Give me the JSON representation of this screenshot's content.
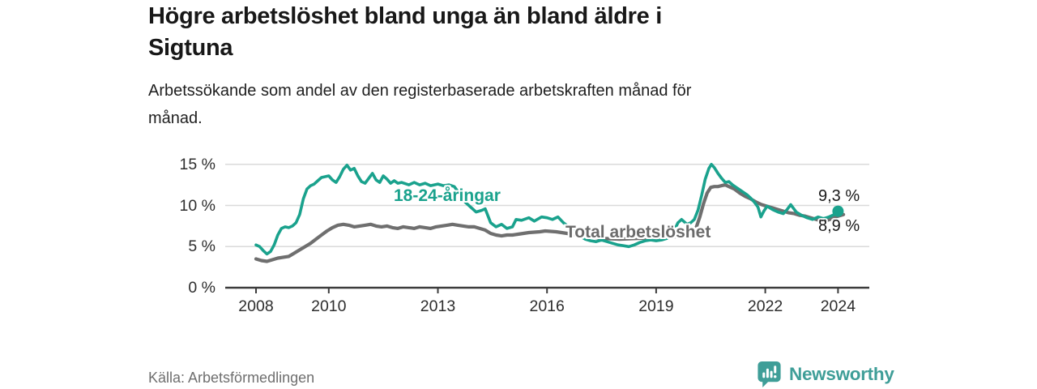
{
  "header": {
    "title_line1": "Högre arbetslöshet bland unga än bland äldre i",
    "title_line2": "Sigtuna",
    "subtitle_line1": "Arbetssökande som andel av den registerbaserade arbetskraften månad för",
    "subtitle_line2": "månad."
  },
  "chart_data": {
    "type": "line",
    "title": "Högre arbetslöshet bland unga än bland äldre i Sigtuna",
    "subtitle": "Arbetssökande som andel av den registerbaserade arbetskraften månad för månad.",
    "unit": "%",
    "ylim": [
      0,
      15
    ],
    "xlim": [
      2007.2,
      2024.9
    ],
    "grid": "horizontal",
    "grid_color": "#dadada",
    "axis_color": "#3c3c3c",
    "y_axis": {
      "ticks": [
        {
          "value": 0,
          "label": "0 %"
        },
        {
          "value": 5,
          "label": "5 %"
        },
        {
          "value": 10,
          "label": "10 %"
        },
        {
          "value": 15,
          "label": "15 %"
        }
      ]
    },
    "x_axis": {
      "ticks": [
        {
          "value": 2008,
          "label": "2008"
        },
        {
          "value": 2010,
          "label": "2010"
        },
        {
          "value": 2013,
          "label": "2013"
        },
        {
          "value": 2016,
          "label": "2016"
        },
        {
          "value": 2019,
          "label": "2019"
        },
        {
          "value": 2022,
          "label": "2022"
        },
        {
          "value": 2024,
          "label": "2024"
        }
      ]
    },
    "series": [
      {
        "id": "young",
        "name": "18-24-åringar",
        "color": "#1aa28d",
        "stroke_width": 3.6,
        "end_label": "9,3 %",
        "end_value": 9.3,
        "end_marker": true,
        "points": [
          [
            2008.0,
            5.2
          ],
          [
            2008.1,
            5.0
          ],
          [
            2008.2,
            4.5
          ],
          [
            2008.3,
            4.1
          ],
          [
            2008.4,
            4.4
          ],
          [
            2008.5,
            5.2
          ],
          [
            2008.6,
            6.4
          ],
          [
            2008.7,
            7.2
          ],
          [
            2008.8,
            7.4
          ],
          [
            2008.9,
            7.3
          ],
          [
            2009.0,
            7.5
          ],
          [
            2009.1,
            7.9
          ],
          [
            2009.2,
            8.9
          ],
          [
            2009.3,
            10.8
          ],
          [
            2009.4,
            12.0
          ],
          [
            2009.5,
            12.4
          ],
          [
            2009.6,
            12.6
          ],
          [
            2009.7,
            13.0
          ],
          [
            2009.8,
            13.4
          ],
          [
            2009.9,
            13.5
          ],
          [
            2010.0,
            13.6
          ],
          [
            2010.1,
            13.1
          ],
          [
            2010.2,
            12.8
          ],
          [
            2010.3,
            13.5
          ],
          [
            2010.4,
            14.4
          ],
          [
            2010.5,
            14.9
          ],
          [
            2010.6,
            14.3
          ],
          [
            2010.7,
            14.5
          ],
          [
            2010.8,
            13.6
          ],
          [
            2010.9,
            12.9
          ],
          [
            2011.0,
            12.7
          ],
          [
            2011.1,
            13.3
          ],
          [
            2011.2,
            13.9
          ],
          [
            2011.3,
            13.1
          ],
          [
            2011.4,
            12.8
          ],
          [
            2011.5,
            13.6
          ],
          [
            2011.6,
            13.2
          ],
          [
            2011.7,
            12.7
          ],
          [
            2011.8,
            13.0
          ],
          [
            2011.9,
            12.7
          ],
          [
            2012.0,
            12.8
          ],
          [
            2012.2,
            12.5
          ],
          [
            2012.35,
            12.8
          ],
          [
            2012.5,
            12.5
          ],
          [
            2012.65,
            12.7
          ],
          [
            2012.8,
            12.4
          ],
          [
            2013.0,
            12.6
          ],
          [
            2013.15,
            12.4
          ],
          [
            2013.3,
            12.5
          ],
          [
            2013.45,
            12.3
          ],
          [
            2013.6,
            11.4
          ],
          [
            2013.75,
            10.4
          ],
          [
            2013.9,
            9.8
          ],
          [
            2014.05,
            9.2
          ],
          [
            2014.2,
            9.4
          ],
          [
            2014.3,
            9.6
          ],
          [
            2014.45,
            7.9
          ],
          [
            2014.6,
            7.4
          ],
          [
            2014.75,
            7.7
          ],
          [
            2014.9,
            7.2
          ],
          [
            2015.05,
            7.4
          ],
          [
            2015.15,
            8.3
          ],
          [
            2015.3,
            8.2
          ],
          [
            2015.5,
            8.5
          ],
          [
            2015.65,
            8.1
          ],
          [
            2015.85,
            8.6
          ],
          [
            2016.0,
            8.5
          ],
          [
            2016.15,
            8.3
          ],
          [
            2016.3,
            8.6
          ],
          [
            2016.45,
            7.9
          ],
          [
            2016.6,
            7.4
          ],
          [
            2016.75,
            6.8
          ],
          [
            2016.9,
            6.3
          ],
          [
            2017.05,
            5.9
          ],
          [
            2017.2,
            5.7
          ],
          [
            2017.35,
            5.6
          ],
          [
            2017.5,
            5.8
          ],
          [
            2017.65,
            5.6
          ],
          [
            2017.8,
            5.4
          ],
          [
            2017.95,
            5.2
          ],
          [
            2018.1,
            5.1
          ],
          [
            2018.25,
            5.0
          ],
          [
            2018.4,
            5.2
          ],
          [
            2018.55,
            5.5
          ],
          [
            2018.7,
            5.7
          ],
          [
            2018.85,
            5.8
          ],
          [
            2019.0,
            5.7
          ],
          [
            2019.15,
            5.8
          ],
          [
            2019.3,
            6.0
          ],
          [
            2019.45,
            6.5
          ],
          [
            2019.6,
            7.9
          ],
          [
            2019.7,
            8.3
          ],
          [
            2019.85,
            7.7
          ],
          [
            2019.95,
            7.9
          ],
          [
            2020.05,
            8.3
          ],
          [
            2020.15,
            9.4
          ],
          [
            2020.25,
            11.2
          ],
          [
            2020.35,
            13.2
          ],
          [
            2020.45,
            14.5
          ],
          [
            2020.52,
            15.0
          ],
          [
            2020.6,
            14.6
          ],
          [
            2020.7,
            13.9
          ],
          [
            2020.8,
            13.3
          ],
          [
            2020.9,
            12.8
          ],
          [
            2021.0,
            12.9
          ],
          [
            2021.1,
            12.5
          ],
          [
            2021.2,
            12.2
          ],
          [
            2021.3,
            11.9
          ],
          [
            2021.4,
            11.6
          ],
          [
            2021.5,
            11.3
          ],
          [
            2021.6,
            10.9
          ],
          [
            2021.7,
            10.4
          ],
          [
            2021.8,
            9.8
          ],
          [
            2021.88,
            8.6
          ],
          [
            2021.96,
            9.3
          ],
          [
            2022.05,
            9.9
          ],
          [
            2022.2,
            9.5
          ],
          [
            2022.35,
            9.2
          ],
          [
            2022.5,
            9.0
          ],
          [
            2022.6,
            9.5
          ],
          [
            2022.7,
            10.1
          ],
          [
            2022.85,
            9.2
          ],
          [
            2023.0,
            8.8
          ],
          [
            2023.15,
            8.5
          ],
          [
            2023.3,
            8.3
          ],
          [
            2023.45,
            8.6
          ],
          [
            2023.6,
            8.4
          ],
          [
            2023.75,
            8.6
          ],
          [
            2023.9,
            8.9
          ],
          [
            2024.0,
            9.3
          ]
        ]
      },
      {
        "id": "total",
        "name": "Total arbetslöshet",
        "color": "#6f6f6f",
        "stroke_width": 4.2,
        "end_label": "8,9 %",
        "end_value": 8.9,
        "end_marker": false,
        "points": [
          [
            2008.0,
            3.5
          ],
          [
            2008.15,
            3.3
          ],
          [
            2008.3,
            3.2
          ],
          [
            2008.45,
            3.4
          ],
          [
            2008.6,
            3.6
          ],
          [
            2008.75,
            3.7
          ],
          [
            2008.9,
            3.8
          ],
          [
            2009.05,
            4.2
          ],
          [
            2009.2,
            4.6
          ],
          [
            2009.35,
            5.0
          ],
          [
            2009.5,
            5.4
          ],
          [
            2009.65,
            5.9
          ],
          [
            2009.8,
            6.4
          ],
          [
            2009.95,
            6.9
          ],
          [
            2010.1,
            7.3
          ],
          [
            2010.25,
            7.6
          ],
          [
            2010.4,
            7.7
          ],
          [
            2010.55,
            7.6
          ],
          [
            2010.7,
            7.4
          ],
          [
            2010.85,
            7.5
          ],
          [
            2011.0,
            7.6
          ],
          [
            2011.15,
            7.7
          ],
          [
            2011.3,
            7.5
          ],
          [
            2011.45,
            7.4
          ],
          [
            2011.6,
            7.5
          ],
          [
            2011.75,
            7.3
          ],
          [
            2011.9,
            7.2
          ],
          [
            2012.05,
            7.4
          ],
          [
            2012.2,
            7.3
          ],
          [
            2012.35,
            7.2
          ],
          [
            2012.5,
            7.4
          ],
          [
            2012.65,
            7.3
          ],
          [
            2012.8,
            7.2
          ],
          [
            2012.95,
            7.4
          ],
          [
            2013.1,
            7.5
          ],
          [
            2013.25,
            7.6
          ],
          [
            2013.4,
            7.7
          ],
          [
            2013.55,
            7.6
          ],
          [
            2013.7,
            7.5
          ],
          [
            2013.85,
            7.4
          ],
          [
            2014.0,
            7.4
          ],
          [
            2014.15,
            7.2
          ],
          [
            2014.3,
            7.0
          ],
          [
            2014.45,
            6.6
          ],
          [
            2014.6,
            6.4
          ],
          [
            2014.75,
            6.3
          ],
          [
            2014.9,
            6.4
          ],
          [
            2015.05,
            6.4
          ],
          [
            2015.2,
            6.5
          ],
          [
            2015.35,
            6.6
          ],
          [
            2015.5,
            6.7
          ],
          [
            2015.65,
            6.75
          ],
          [
            2015.8,
            6.8
          ],
          [
            2015.95,
            6.9
          ],
          [
            2016.1,
            6.85
          ],
          [
            2016.25,
            6.8
          ],
          [
            2016.4,
            6.7
          ],
          [
            2016.55,
            6.6
          ],
          [
            2016.7,
            6.5
          ],
          [
            2016.85,
            6.4
          ],
          [
            2017.0,
            6.3
          ],
          [
            2017.25,
            6.15
          ],
          [
            2017.5,
            6.0
          ],
          [
            2017.75,
            5.95
          ],
          [
            2018.0,
            5.9
          ],
          [
            2018.25,
            5.95
          ],
          [
            2018.5,
            6.0
          ],
          [
            2018.75,
            6.05
          ],
          [
            2019.0,
            6.1
          ],
          [
            2019.25,
            6.15
          ],
          [
            2019.5,
            6.2
          ],
          [
            2019.75,
            6.3
          ],
          [
            2019.9,
            6.4
          ],
          [
            2020.0,
            6.6
          ],
          [
            2020.1,
            7.3
          ],
          [
            2020.2,
            8.6
          ],
          [
            2020.3,
            10.2
          ],
          [
            2020.4,
            11.5
          ],
          [
            2020.5,
            12.2
          ],
          [
            2020.6,
            12.3
          ],
          [
            2020.7,
            12.3
          ],
          [
            2020.8,
            12.4
          ],
          [
            2020.9,
            12.5
          ],
          [
            2021.0,
            12.3
          ],
          [
            2021.15,
            12.0
          ],
          [
            2021.3,
            11.5
          ],
          [
            2021.45,
            11.1
          ],
          [
            2021.6,
            10.8
          ],
          [
            2021.75,
            10.4
          ],
          [
            2021.9,
            10.1
          ],
          [
            2022.05,
            9.9
          ],
          [
            2022.2,
            9.7
          ],
          [
            2022.35,
            9.5
          ],
          [
            2022.5,
            9.3
          ],
          [
            2022.65,
            9.1
          ],
          [
            2022.8,
            9.0
          ],
          [
            2022.95,
            8.8
          ],
          [
            2023.1,
            8.7
          ],
          [
            2023.25,
            8.5
          ],
          [
            2023.4,
            8.3
          ],
          [
            2023.55,
            8.1
          ],
          [
            2023.7,
            8.2
          ],
          [
            2023.85,
            8.4
          ],
          [
            2024.0,
            8.7
          ],
          [
            2024.15,
            8.9
          ]
        ]
      }
    ]
  },
  "footer": {
    "source": "Källa: Arbetsförmedlingen",
    "brand": "Newsworthy"
  },
  "colors": {
    "accent_teal": "#1aa28d",
    "line_gray": "#6f6f6f",
    "brand_teal": "#3f9e98",
    "text_dark": "#181818"
  }
}
